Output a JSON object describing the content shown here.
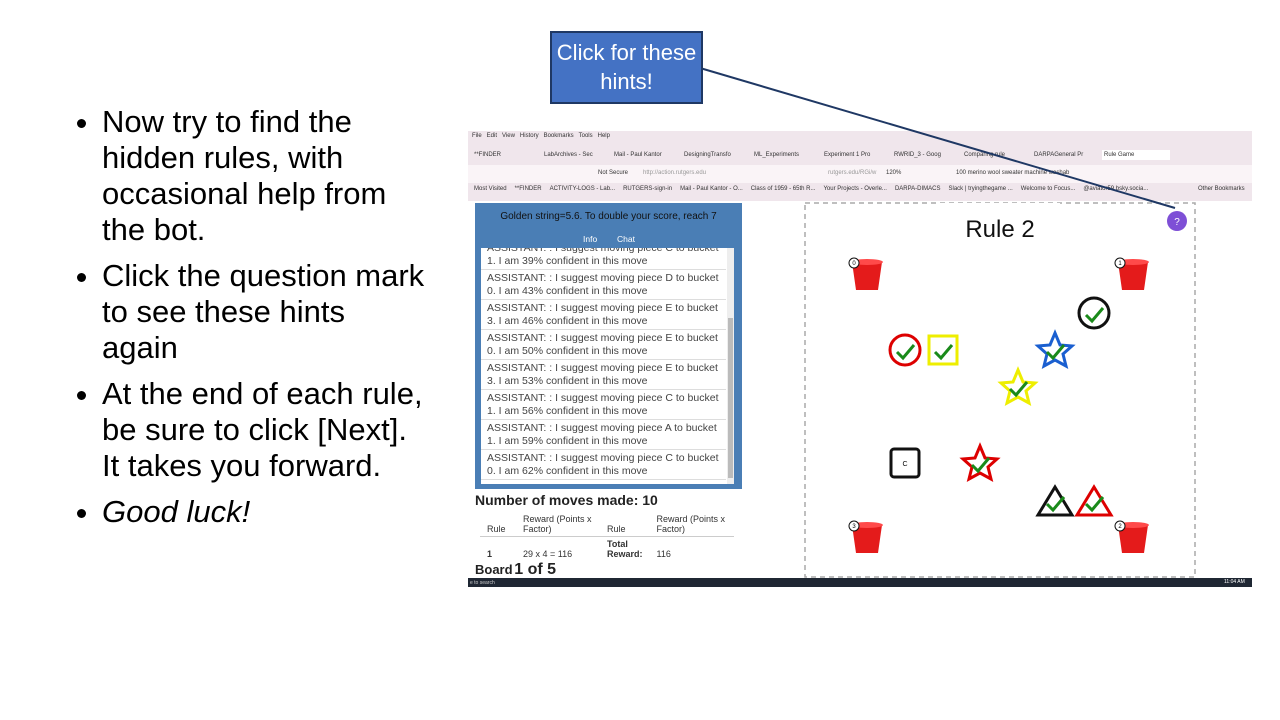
{
  "slide": {
    "bullets": [
      {
        "text": "Now try to find the hidden rules, with occasional help from the bot.",
        "italic": false
      },
      {
        "text": "Click the question mark to see these hints again",
        "italic": false
      },
      {
        "text": "At the end of each rule, be sure to click [Next]. It takes you forward.",
        "italic": false
      },
      {
        "text": "Good luck!",
        "italic": true
      }
    ],
    "callout": "Click for these hints!"
  },
  "browser": {
    "menu": [
      "File",
      "Edit",
      "View",
      "History",
      "Bookmarks",
      "Tools",
      "Help"
    ],
    "tabs": [
      "**FINDER",
      "LabArchives - Sec",
      "Mail - Paul Kantor",
      "DesigningTransfo",
      "ML_Experiments",
      "Experiment 1 Pro",
      "RWRID_3 - Goog",
      "Comparing rule",
      "DARPAGeneral Pr",
      "Rule Game"
    ],
    "security": "Not Secure",
    "url": "http://action.rutgers.edu",
    "url_tail": "rutgers.edu/RGi/w",
    "zoom": "120%",
    "search": "100 merino wool sweater machine washab",
    "bookmarks": [
      "Most Visited",
      "**FINDER",
      "ACTIVITY-LOGS - Lab...",
      "RUTGERS-sign-in",
      "Mail - Paul Kantor - O...",
      "Class of 1959 - 65th R...",
      "Your Projects - Overle...",
      "DARPA-DIMACS",
      "Slack | tryingthegame ...",
      "Welcome to Focus...",
      "@aviator59.bsky.socia..."
    ],
    "other_bookmarks": "Other Bookmarks"
  },
  "panel": {
    "header": "Golden string=5.6. To double your score, reach 7",
    "tabs": [
      "Info",
      "Chat"
    ],
    "messages": [
      "ASSISTANT: : I suggest moving piece C to bucket 1. I am 39% confident in this move",
      "ASSISTANT: : I suggest moving piece D to bucket 0. I am 43% confident in this move",
      "ASSISTANT: : I suggest moving piece E to bucket 3. I am 46% confident in this move",
      "ASSISTANT: : I suggest moving piece E to bucket 0. I am 50% confident in this move",
      "ASSISTANT: : I suggest moving piece E to bucket 3. I am 53% confident in this move",
      "ASSISTANT: : I suggest moving piece C to bucket 1. I am 56% confident in this move",
      "ASSISTANT: : I suggest moving piece A to bucket 1. I am 59% confident in this move",
      "ASSISTANT: : I suggest moving piece C to bucket 0. I am 62% confident in this move"
    ],
    "moves": "Number of moves made: 10",
    "table": {
      "columns": [
        "Rule",
        "Reward (Points x Factor)",
        "Rule",
        "Reward (Points x Factor)"
      ],
      "rows": [
        [
          "1",
          "29 x 4 = 116",
          "Total Reward:",
          "116"
        ]
      ]
    },
    "board_label": "Board",
    "board_count": "1 of 5"
  },
  "game": {
    "title": "Rule 2",
    "help": "?",
    "buckets": [
      "0",
      "1",
      "2",
      "3"
    ],
    "piece_label": "C"
  },
  "taskbar": {
    "search": "e to search",
    "time": "11:04 AM"
  }
}
